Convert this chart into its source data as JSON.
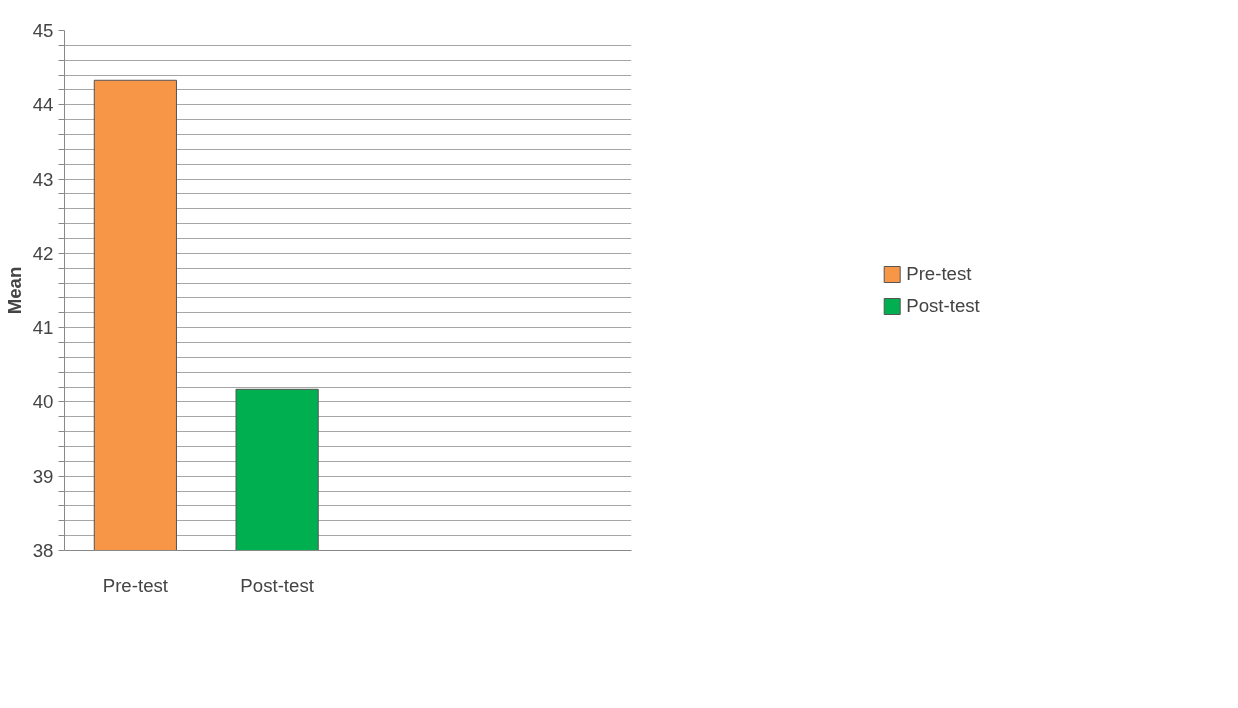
{
  "chart_data": {
    "type": "bar",
    "ylabel": "Mean",
    "categories": [
      "Pre-test",
      "Post-test",
      null,
      null
    ],
    "series": [
      {
        "name": "Pre-test",
        "color": "#f79646",
        "values": [
          44.33,
          null,
          null,
          null
        ]
      },
      {
        "name": "Post-test",
        "color": "#00b050",
        "values": [
          null,
          40.17,
          null,
          null
        ]
      }
    ],
    "ylim": [
      38,
      45
    ],
    "yticks": [
      38,
      {
        "value": 38.2,
        "label": null
      },
      {
        "value": 38.4,
        "label": null
      },
      {
        "value": 38.6,
        "label": null
      },
      {
        "value": 38.8,
        "label": null
      },
      39,
      {
        "value": 39.2,
        "label": null
      },
      {
        "value": 39.4,
        "label": null
      },
      {
        "value": 39.6,
        "label": null
      },
      {
        "value": 39.8,
        "label": null
      },
      40,
      {
        "value": 40.2,
        "label": null
      },
      {
        "value": 40.4,
        "label": null
      },
      {
        "value": 40.6,
        "label": null
      },
      {
        "value": 40.8,
        "label": null
      },
      41,
      {
        "value": 41.2,
        "label": null
      },
      {
        "value": 41.4,
        "label": null
      },
      {
        "value": 41.6,
        "label": null
      },
      {
        "value": 41.8,
        "label": null
      },
      42,
      {
        "value": 42.2,
        "label": null
      },
      {
        "value": 42.4,
        "label": null
      },
      {
        "value": 42.6,
        "label": null
      },
      {
        "value": 42.8,
        "label": null
      },
      43,
      {
        "value": 43.2,
        "label": null
      },
      {
        "value": 43.4,
        "label": null
      },
      {
        "value": 43.6,
        "label": null
      },
      {
        "value": 43.8,
        "label": null
      },
      44,
      {
        "value": 44.2,
        "label": null
      },
      {
        "value": 44.4,
        "label": null
      },
      {
        "value": 44.6,
        "label": null
      },
      {
        "value": 44.8,
        "label": null
      },
      45
    ],
    "grid": "y",
    "legend": "right"
  }
}
